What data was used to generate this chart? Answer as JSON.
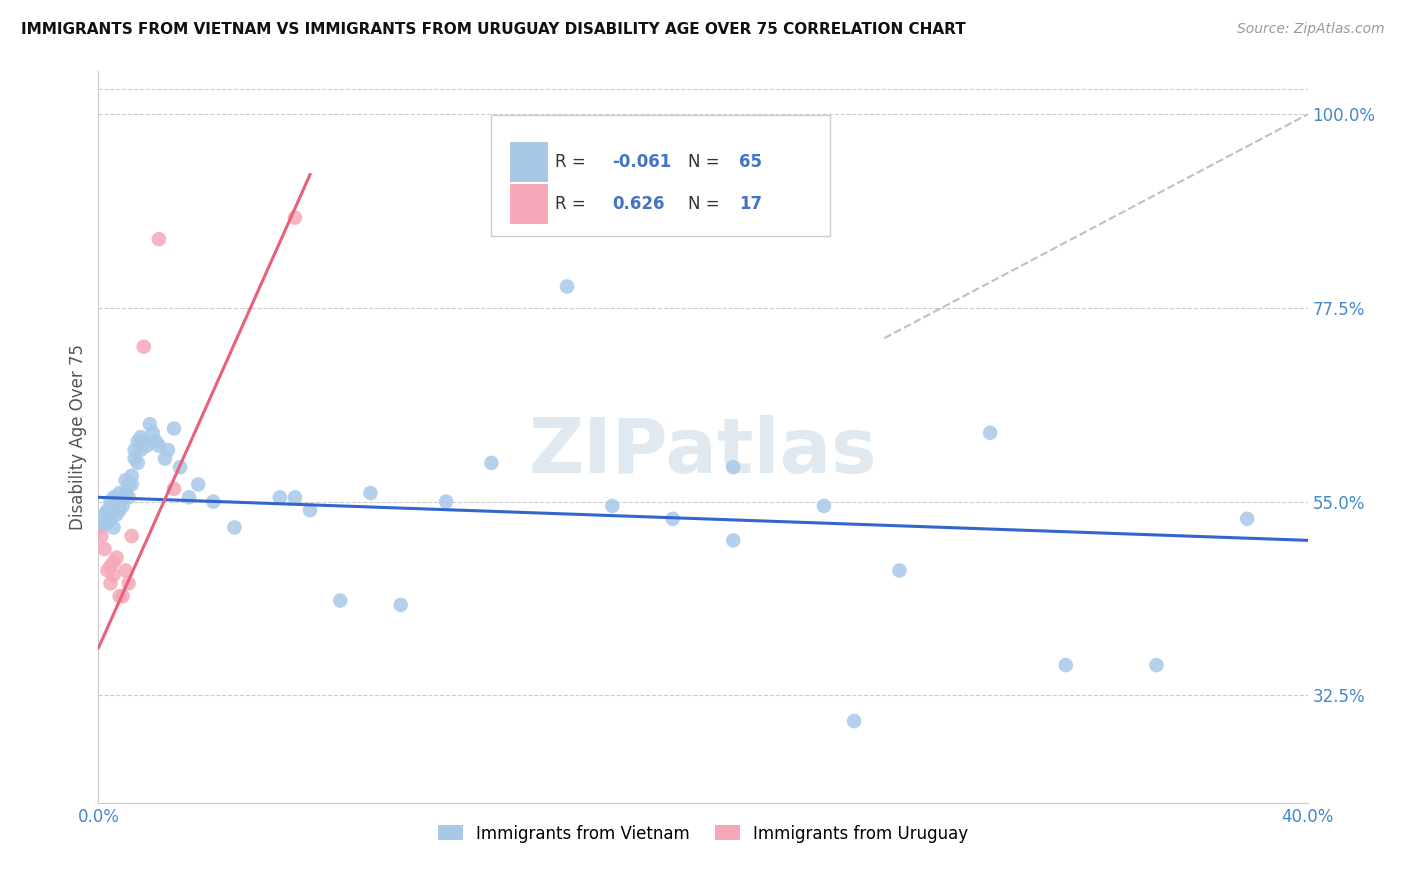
{
  "title": "IMMIGRANTS FROM VIETNAM VS IMMIGRANTS FROM URUGUAY DISABILITY AGE OVER 75 CORRELATION CHART",
  "source": "Source: ZipAtlas.com",
  "ylabel": "Disability Age Over 75",
  "xmin": 0.0,
  "xmax": 0.4,
  "ymin": 0.2,
  "ymax": 1.05,
  "yticks": [
    0.325,
    0.55,
    0.775,
    1.0
  ],
  "ytick_labels": [
    "32.5%",
    "55.0%",
    "77.5%",
    "100.0%"
  ],
  "r_vietnam": -0.061,
  "n_vietnam": 65,
  "r_uruguay": 0.626,
  "n_uruguay": 17,
  "vietnam_color": "#a8c8e8",
  "uruguay_color": "#f4a8b8",
  "vietnam_line_color": "#3366cc",
  "uruguay_line_color": "#e8607a",
  "trendline_dashed_color": "#c0c0c0",
  "grid_color": "#cccccc",
  "vietnam_x": [
    0.001,
    0.002,
    0.002,
    0.003,
    0.003,
    0.004,
    0.004,
    0.004,
    0.005,
    0.005,
    0.005,
    0.006,
    0.006,
    0.006,
    0.007,
    0.007,
    0.007,
    0.008,
    0.008,
    0.009,
    0.009,
    0.01,
    0.01,
    0.011,
    0.011,
    0.012,
    0.012,
    0.013,
    0.013,
    0.014,
    0.014,
    0.015,
    0.016,
    0.017,
    0.018,
    0.019,
    0.02,
    0.022,
    0.023,
    0.025,
    0.027,
    0.03,
    0.033,
    0.038,
    0.045,
    0.06,
    0.065,
    0.07,
    0.08,
    0.09,
    0.1,
    0.115,
    0.13,
    0.155,
    0.17,
    0.19,
    0.21,
    0.24,
    0.265,
    0.295,
    0.32,
    0.35,
    0.38,
    0.21,
    0.25
  ],
  "vietnam_y": [
    0.52,
    0.525,
    0.535,
    0.54,
    0.525,
    0.535,
    0.55,
    0.53,
    0.54,
    0.555,
    0.52,
    0.545,
    0.555,
    0.535,
    0.55,
    0.56,
    0.54,
    0.555,
    0.545,
    0.56,
    0.575,
    0.555,
    0.57,
    0.58,
    0.57,
    0.6,
    0.61,
    0.595,
    0.62,
    0.61,
    0.625,
    0.62,
    0.615,
    0.64,
    0.63,
    0.62,
    0.615,
    0.6,
    0.61,
    0.635,
    0.59,
    0.555,
    0.57,
    0.55,
    0.52,
    0.555,
    0.555,
    0.54,
    0.435,
    0.56,
    0.43,
    0.55,
    0.595,
    0.8,
    0.545,
    0.53,
    0.59,
    0.545,
    0.47,
    0.63,
    0.36,
    0.36,
    0.53,
    0.505,
    0.295
  ],
  "uruguay_x": [
    0.001,
    0.002,
    0.003,
    0.004,
    0.004,
    0.005,
    0.005,
    0.006,
    0.007,
    0.008,
    0.009,
    0.01,
    0.011,
    0.015,
    0.02,
    0.025,
    0.065
  ],
  "uruguay_y": [
    0.51,
    0.495,
    0.47,
    0.475,
    0.455,
    0.48,
    0.465,
    0.485,
    0.44,
    0.44,
    0.47,
    0.455,
    0.51,
    0.73,
    0.855,
    0.565,
    0.88
  ],
  "viet_trendline_x": [
    0.0,
    0.4
  ],
  "viet_trendline_y": [
    0.555,
    0.505
  ],
  "uru_trendline_x": [
    0.0,
    0.07
  ],
  "uru_trendline_y": [
    0.38,
    0.93
  ],
  "dash_trendline_x": [
    0.26,
    0.4
  ],
  "dash_trendline_y": [
    0.74,
    1.0
  ]
}
